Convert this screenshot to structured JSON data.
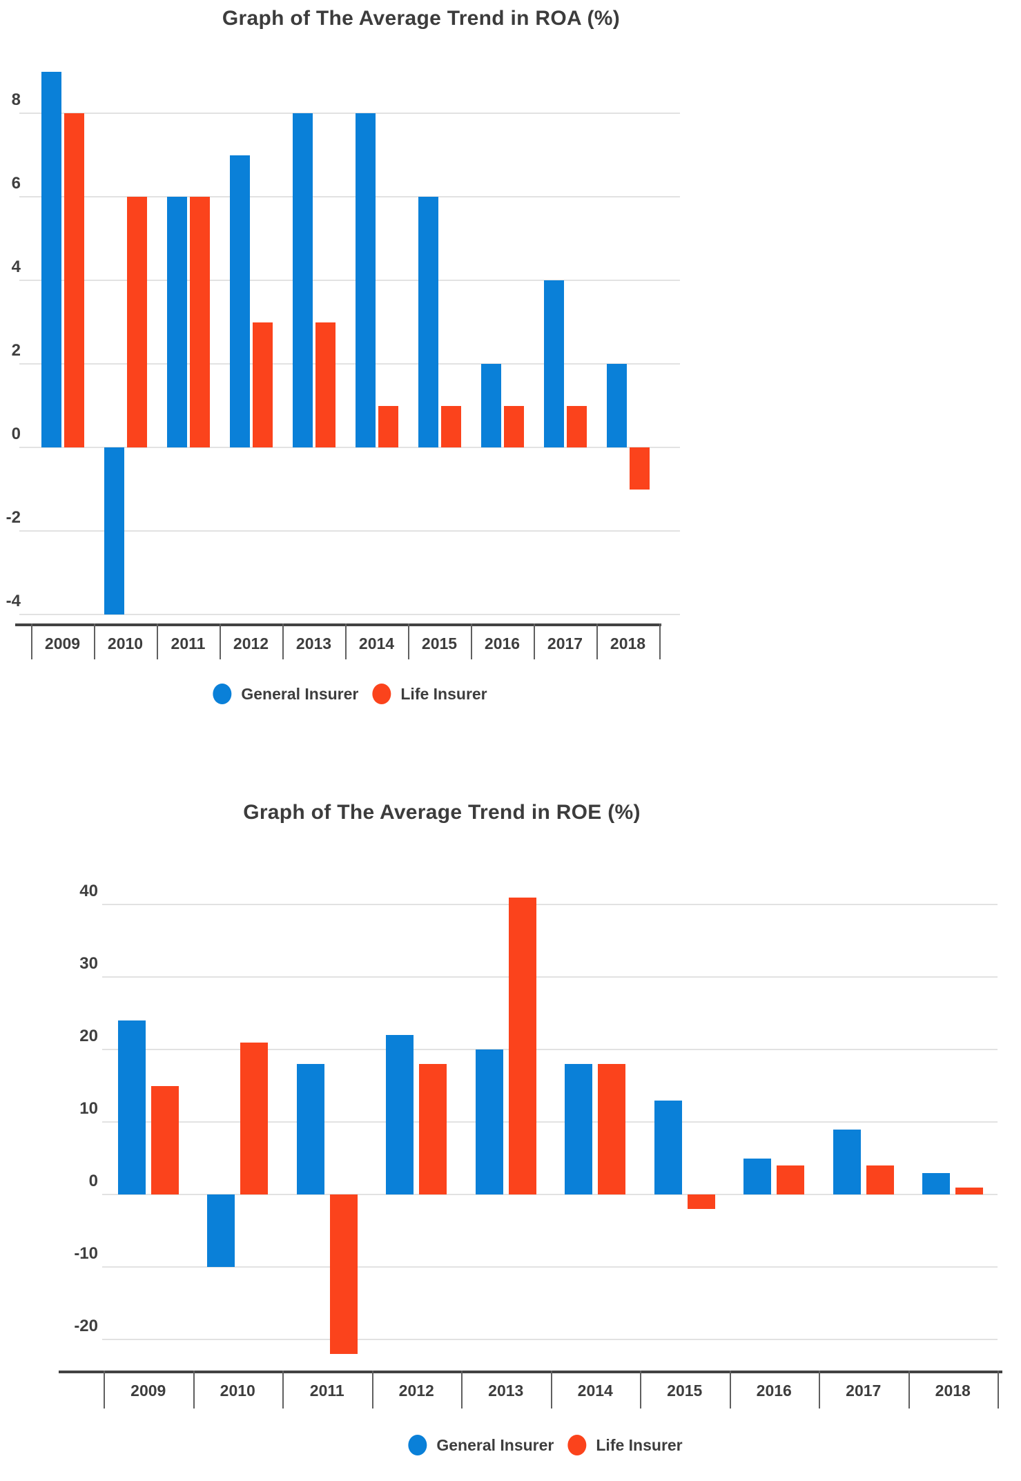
{
  "page": {
    "background": "#ffffff",
    "text_color": "#3c3c3c"
  },
  "palette": {
    "general_insurer": "#0a80d8",
    "life_insurer": "#fb431c",
    "gridline": "#e2e2e2",
    "axis_line": "#424242",
    "tick": "#5f5f5f"
  },
  "chart_data": [
    {
      "type": "bar",
      "title": "Graph of The Average Trend in ROA (%)",
      "xlabel": "",
      "ylabel": "",
      "categories": [
        "2009",
        "2010",
        "2011",
        "2012",
        "2013",
        "2014",
        "2015",
        "2016",
        "2017",
        "2018"
      ],
      "series": [
        {
          "name": "General Insurer",
          "color": "#0a80d8",
          "values": [
            9,
            -4,
            6,
            7,
            8,
            8,
            6,
            2,
            4,
            2
          ]
        },
        {
          "name": "Life Insurer",
          "color": "#fb431c",
          "values": [
            8,
            6,
            6,
            3,
            3,
            1,
            1,
            1,
            1,
            -1
          ]
        }
      ],
      "yticks": [
        8,
        6,
        4,
        2,
        0,
        -2,
        -4
      ],
      "ylim": [
        -4.2,
        9.3
      ],
      "grid": true,
      "legend_position": "bottom",
      "legend": [
        "General Insurer",
        "Life Insurer"
      ]
    },
    {
      "type": "bar",
      "title": "Graph of The Average Trend in ROE (%)",
      "xlabel": "",
      "ylabel": "",
      "categories": [
        "2009",
        "2010",
        "2011",
        "2012",
        "2013",
        "2014",
        "2015",
        "2016",
        "2017",
        "2018"
      ],
      "series": [
        {
          "name": "General Insurer",
          "color": "#0a80d8",
          "values": [
            24,
            -10,
            18,
            22,
            20,
            18,
            13,
            5,
            9,
            3
          ]
        },
        {
          "name": "Life Insurer",
          "color": "#fb431c",
          "values": [
            15,
            21,
            -22,
            18,
            41,
            18,
            -2,
            4,
            4,
            1
          ]
        }
      ],
      "yticks": [
        40,
        30,
        20,
        10,
        0,
        -10,
        -20
      ],
      "ylim": [
        -24.5,
        41.5
      ],
      "grid": true,
      "legend_position": "bottom",
      "legend": [
        "General Insurer",
        "Life Insurer"
      ]
    }
  ]
}
